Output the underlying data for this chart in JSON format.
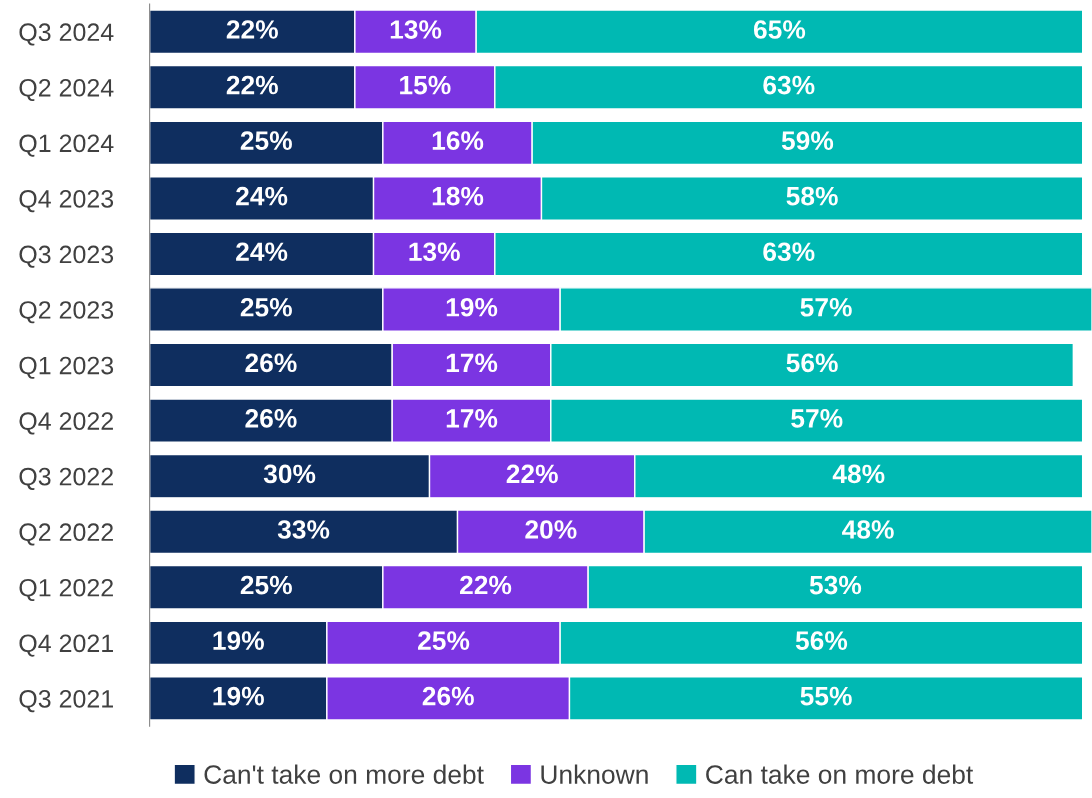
{
  "chart_data": {
    "type": "bar",
    "orientation": "horizontal",
    "stacked": true,
    "legend": "bottom",
    "grid": false,
    "tick_labels": "y",
    "categories": [
      "Q3 2024",
      "Q2 2024",
      "Q1 2024",
      "Q4 2023",
      "Q3 2023",
      "Q2 2023",
      "Q1 2023",
      "Q4 2022",
      "Q3 2022",
      "Q2 2022",
      "Q1 2022",
      "Q4 2021",
      "Q3 2021"
    ],
    "series": [
      {
        "name": "Can't take on more debt",
        "color": "#0f2e5f",
        "values": [
          22,
          22,
          25,
          24,
          24,
          25,
          26,
          26,
          30,
          33,
          25,
          19,
          19
        ],
        "value_labels": [
          "22%",
          "22%",
          "25%",
          "24%",
          "24%",
          "25%",
          "26%",
          "26%",
          "30%",
          "33%",
          "25%",
          "19%",
          "19%"
        ]
      },
      {
        "name": "Unknown",
        "color": "#7b35e2",
        "values": [
          13,
          15,
          16,
          18,
          13,
          19,
          17,
          17,
          22,
          20,
          22,
          25,
          26
        ],
        "value_labels": [
          "13%",
          "15%",
          "16%",
          "18%",
          "13%",
          "19%",
          "17%",
          "17%",
          "22%",
          "20%",
          "22%",
          "25%",
          "26%"
        ]
      },
      {
        "name": "Can take on more debt",
        "color": "#00b9b3",
        "values": [
          65,
          63,
          59,
          58,
          63,
          57,
          56,
          57,
          48,
          48,
          53,
          56,
          55
        ],
        "value_labels": [
          "65%",
          "63%",
          "59%",
          "58%",
          "63%",
          "57%",
          "56%",
          "57%",
          "48%",
          "48%",
          "53%",
          "56%",
          "55%"
        ]
      }
    ]
  }
}
